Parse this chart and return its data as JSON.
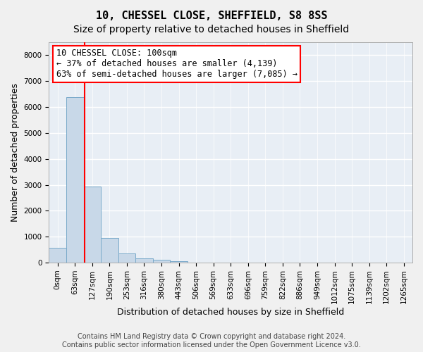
{
  "title": "10, CHESSEL CLOSE, SHEFFIELD, S8 8SS",
  "subtitle": "Size of property relative to detached houses in Sheffield",
  "xlabel": "Distribution of detached houses by size in Sheffield",
  "ylabel": "Number of detached properties",
  "bin_labels": [
    "0sqm",
    "63sqm",
    "127sqm",
    "190sqm",
    "253sqm",
    "316sqm",
    "380sqm",
    "443sqm",
    "506sqm",
    "569sqm",
    "633sqm",
    "696sqm",
    "759sqm",
    "822sqm",
    "886sqm",
    "949sqm",
    "1012sqm",
    "1075sqm",
    "1139sqm",
    "1202sqm",
    "1265sqm"
  ],
  "values": [
    570,
    6390,
    2920,
    960,
    340,
    155,
    100,
    60,
    0,
    0,
    0,
    0,
    0,
    0,
    0,
    0,
    0,
    0,
    0,
    0,
    0
  ],
  "bar_color": "#c8d8e8",
  "bar_edge_color": "#7aaaca",
  "annotation_title": "10 CHESSEL CLOSE: 100sqm",
  "annotation_line1": "← 37% of detached houses are smaller (4,139)",
  "annotation_line2": "63% of semi-detached houses are larger (7,085) →",
  "vline_pos": 1.58,
  "ylim": [
    0,
    8500
  ],
  "yticks": [
    0,
    1000,
    2000,
    3000,
    4000,
    5000,
    6000,
    7000,
    8000
  ],
  "background_color": "#e8eef5",
  "grid_color": "#ffffff",
  "footer_line1": "Contains HM Land Registry data © Crown copyright and database right 2024.",
  "footer_line2": "Contains public sector information licensed under the Open Government Licence v3.0.",
  "title_fontsize": 11,
  "subtitle_fontsize": 10,
  "axis_label_fontsize": 9,
  "tick_fontsize": 7.5,
  "annotation_fontsize": 8.5,
  "footer_fontsize": 7
}
